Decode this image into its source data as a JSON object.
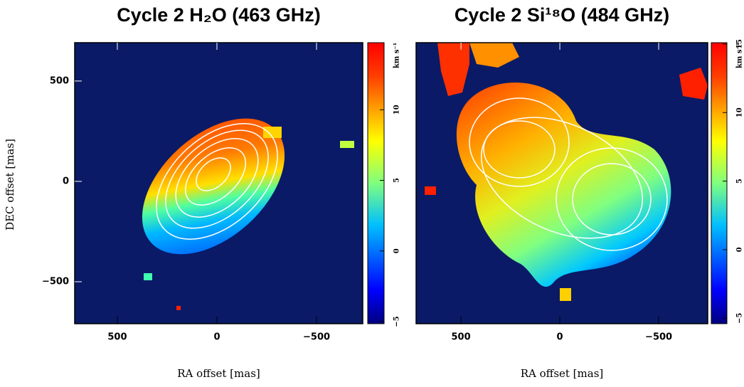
{
  "chart_data": [
    {
      "type": "heatmap",
      "title": "Cycle 2 H₂O (463 GHz)",
      "xlabel": "RA offset [mas]",
      "ylabel": "DEC offset [mas]",
      "xlim": [
        714,
        -732
      ],
      "ylim": [
        -709,
        691
      ],
      "xticks": [
        500,
        0,
        {
          "value": -500,
          "label": "−500"
        }
      ],
      "yticks": [
        500,
        0,
        {
          "value": -500,
          "label": "−500"
        }
      ],
      "colorbar": {
        "label": "km s⁻¹",
        "lim": [
          -5.15,
          14.75
        ],
        "ticks": [
          {
            "value": -5,
            "label": "−5"
          },
          0,
          5,
          10
        ]
      }
    },
    {
      "type": "heatmap",
      "title": "Cycle 2 Si¹⁸O (484 GHz)",
      "xlabel": "RA offset [mas]",
      "xlim": [
        727,
        -748
      ],
      "ylim": [
        -709,
        691
      ],
      "xticks": [
        500,
        0,
        {
          "value": -500,
          "label": "−500"
        }
      ],
      "colorbar": {
        "label": "km s⁻¹",
        "lim": [
          -5.4,
          15.1
        ],
        "ticks": [
          {
            "value": -5,
            "label": "−5"
          },
          0,
          5,
          10,
          15
        ]
      }
    }
  ]
}
